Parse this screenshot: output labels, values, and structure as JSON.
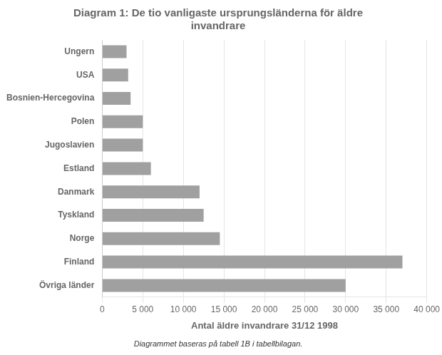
{
  "chart_data": {
    "type": "bar",
    "orientation": "horizontal",
    "title": "Diagram 1: De tio vanligaste ursprungsländerna för äldre\ninvandrare",
    "xlabel": "Antal äldre invandrare 31/12 1998",
    "footnote": "Diagrammet baseras på tabell 1B i tabellbilagan.",
    "categories": [
      "Övriga länder",
      "Finland",
      "Norge",
      "Tyskland",
      "Danmark",
      "Estland",
      "Jugoslavien",
      "Polen",
      "Bosnien-Hercegovina",
      "USA",
      "Ungern"
    ],
    "values": [
      30000,
      37000,
      14500,
      12500,
      12000,
      6000,
      5000,
      5000,
      3500,
      3200,
      3000
    ],
    "color": "#a0a0a0",
    "xlim": [
      0,
      40000
    ],
    "xticks": [
      0,
      {
        "value": 5000,
        "label": "5 000"
      },
      {
        "value": 10000,
        "label": "10 000"
      },
      {
        "value": 15000,
        "label": "15 000"
      },
      {
        "value": 20000,
        "label": "20 000"
      },
      {
        "value": 25000,
        "label": "25 000"
      },
      {
        "value": 30000,
        "label": "30 000"
      },
      {
        "value": 35000,
        "label": "35 000"
      },
      {
        "value": 40000,
        "label": "40 000"
      }
    ],
    "grid": true
  }
}
